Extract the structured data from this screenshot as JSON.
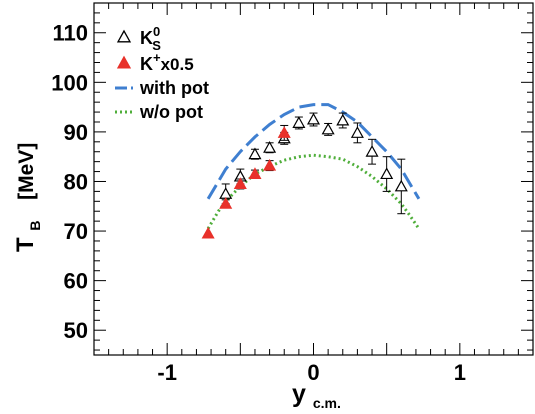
{
  "chart_data": {
    "type": "scatter",
    "xlabel": {
      "main": "y",
      "sub": "c.m."
    },
    "ylabel": {
      "main": "T",
      "sub": "B",
      "unit": "[MeV]"
    },
    "xlim": [
      -1.5,
      1.5
    ],
    "ylim": [
      45,
      116
    ],
    "x_ticks": [
      -1,
      0,
      1
    ],
    "x_tick_labels": [
      "-1",
      "0",
      "1"
    ],
    "y_ticks": [
      50,
      60,
      70,
      80,
      90,
      100,
      110
    ],
    "y_tick_labels": [
      "50",
      "60",
      "70",
      "80",
      "90",
      "100",
      "110"
    ],
    "grid": false,
    "legend_position": "top-left",
    "legend": [
      {
        "key": "k0s",
        "label": "K",
        "sup": "0",
        "sub": "S",
        "marker": "open-triangle",
        "color": "#000000"
      },
      {
        "key": "kplus",
        "label": "K",
        "sup": "+",
        "suffix": "x0.5",
        "marker": "filled-triangle",
        "color": "#e8312a"
      },
      {
        "key": "with_pot",
        "label": "with pot",
        "marker": "dashed-line",
        "color": "#3f7fd0"
      },
      {
        "key": "wo_pot",
        "label": "w/o pot",
        "marker": "dotted-line",
        "color": "#4fae3a"
      }
    ],
    "series": [
      {
        "key": "k0s",
        "x": [
          -0.6,
          -0.5,
          -0.4,
          -0.3,
          -0.2,
          -0.1,
          0.0,
          0.1,
          0.2,
          0.3,
          0.4,
          0.5,
          0.6
        ],
        "y": [
          77.5,
          81.0,
          85.5,
          86.8,
          88.7,
          91.8,
          92.5,
          90.5,
          92.3,
          89.8,
          86.0,
          81.5,
          79.0
        ],
        "err": [
          2.0,
          1.5,
          1.0,
          1.0,
          1.2,
          1.2,
          1.3,
          1.2,
          1.5,
          2.0,
          2.5,
          3.5,
          5.5
        ]
      },
      {
        "key": "kplus",
        "x": [
          -0.72,
          -0.6,
          -0.5,
          -0.4,
          -0.3,
          -0.2
        ],
        "y": [
          69.5,
          75.5,
          79.5,
          81.5,
          83.2,
          89.8
        ],
        "err": [
          0,
          0.8,
          1.0,
          0.8,
          1.0,
          1.5
        ]
      },
      {
        "key": "with_pot",
        "x": [
          -0.72,
          -0.65,
          -0.6,
          -0.5,
          -0.4,
          -0.3,
          -0.2,
          -0.1,
          0.0,
          0.1,
          0.2,
          0.3,
          0.4,
          0.5,
          0.6,
          0.65,
          0.72
        ],
        "y": [
          76.5,
          80.0,
          82.5,
          86.0,
          89.0,
          91.5,
          93.5,
          95.0,
          95.5,
          95.5,
          94.0,
          92.0,
          89.0,
          86.0,
          82.5,
          80.0,
          76.5
        ]
      },
      {
        "key": "wo_pot",
        "x": [
          -0.72,
          -0.65,
          -0.6,
          -0.5,
          -0.4,
          -0.3,
          -0.2,
          -0.1,
          0.0,
          0.1,
          0.2,
          0.3,
          0.4,
          0.5,
          0.6,
          0.65,
          0.72
        ],
        "y": [
          70.5,
          74.0,
          76.0,
          79.0,
          81.5,
          83.0,
          84.3,
          85.0,
          85.3,
          85.0,
          84.5,
          83.0,
          81.0,
          78.5,
          75.5,
          73.5,
          70.5
        ]
      }
    ]
  }
}
